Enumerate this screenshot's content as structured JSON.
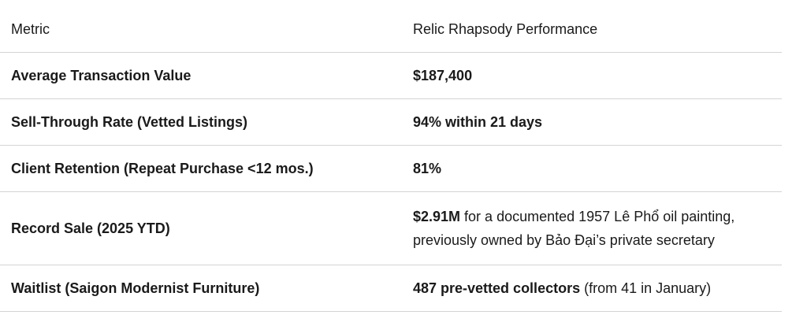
{
  "table": {
    "headers": [
      "Metric",
      "Relic Rhapsody Performance"
    ],
    "rows": [
      {
        "metric": "Average Transaction Value",
        "value_bold": "$187,400",
        "value_rest": ""
      },
      {
        "metric": "Sell-Through Rate (Vetted Listings)",
        "value_bold": "94% within 21 days",
        "value_rest": ""
      },
      {
        "metric": "Client Retention (Repeat Purchase <12 mos.)",
        "value_bold": "81%",
        "value_rest": ""
      },
      {
        "metric": "Record Sale (2025 YTD)",
        "value_bold": "$2.91M",
        "value_rest": " for a documented 1957 Lê Phổ oil painting, previously owned by Bảo Đại’s private secretary"
      },
      {
        "metric": "Waitlist (Saigon Modernist Furniture)",
        "value_bold": "487 pre-vetted collectors",
        "value_rest": " (from 41 in January)"
      }
    ]
  }
}
